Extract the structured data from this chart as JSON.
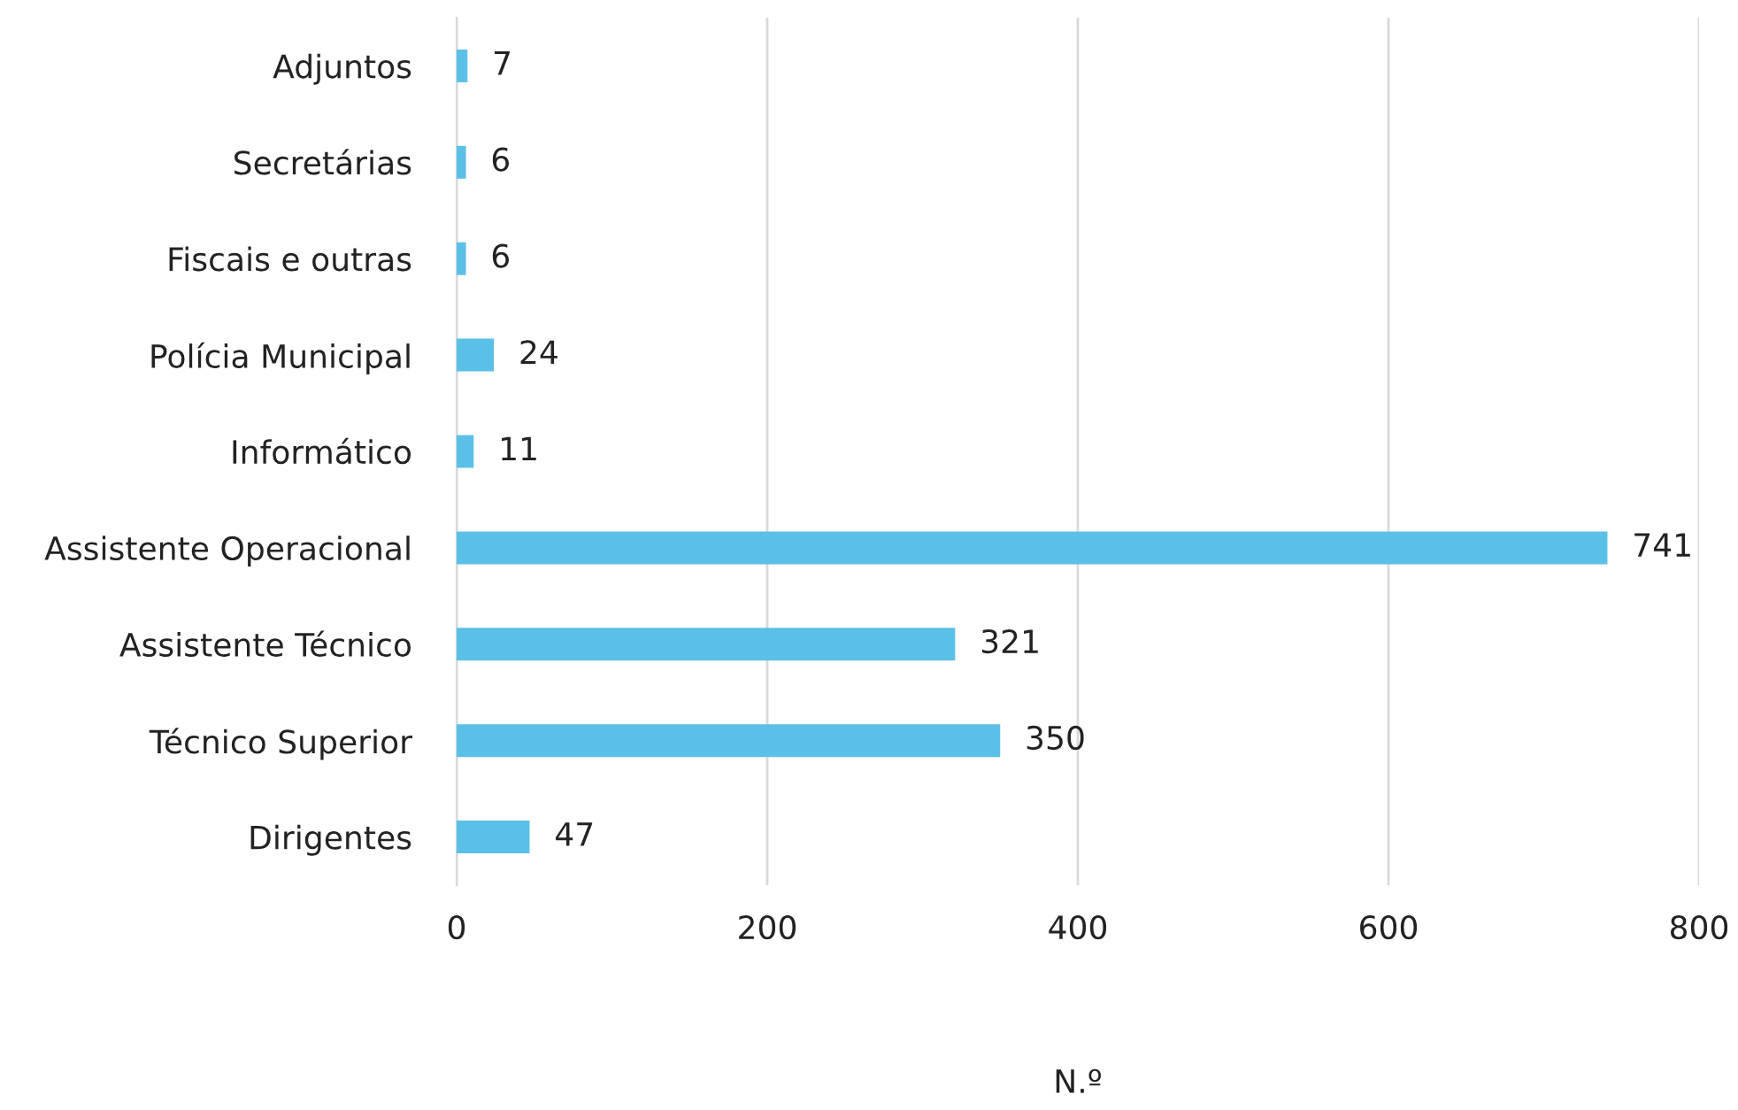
{
  "chart_data": {
    "type": "bar",
    "orientation": "horizontal",
    "categories": [
      "Adjuntos",
      "Secretárias",
      "Fiscais e outras",
      "Polícia Municipal",
      "Informático",
      "Assistente Operacional",
      "Assistente Técnico",
      "Técnico Superior",
      "Dirigentes"
    ],
    "values": [
      7,
      6,
      6,
      24,
      11,
      741,
      321,
      350,
      47
    ],
    "color": "#5bc0e8",
    "xlim": [
      0,
      800
    ],
    "xticks": [
      0,
      200,
      400,
      600,
      800
    ],
    "xlabel": "N.º",
    "grid": "x",
    "data_labels": true,
    "legend": false
  }
}
